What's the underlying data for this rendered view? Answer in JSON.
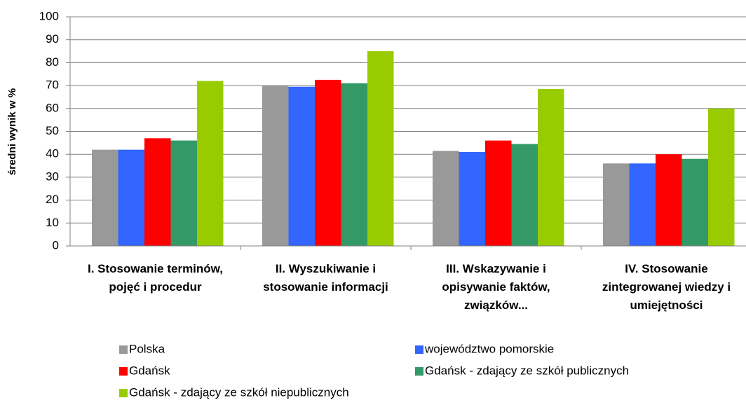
{
  "chart_data": {
    "type": "bar",
    "y_label": "średni wynik w %",
    "categories": [
      "I. Stosowanie terminów, pojęć i procedur",
      "II. Wyszukiwanie i stosowanie informacji",
      "III. Wskazywanie i opisywanie faktów, związków...",
      "IV. Stosowanie zintegrowanej wiedzy i umiejętności"
    ],
    "series": [
      {
        "name": "Polska",
        "color": "#999999",
        "values": [
          42,
          70,
          41.5,
          36
        ]
      },
      {
        "name": "województwo pomorskie",
        "color": "#3366ff",
        "values": [
          42,
          69.5,
          41,
          36
        ]
      },
      {
        "name": "Gdańsk",
        "color": "#ff0000",
        "values": [
          47,
          72.5,
          46,
          40
        ]
      },
      {
        "name": "Gdańsk - zdający ze szkół publicznych",
        "color": "#339966",
        "values": [
          46,
          71,
          44.5,
          38
        ]
      },
      {
        "name": "Gdańsk - zdający ze szkół niepublicznych",
        "color": "#99cc00",
        "values": [
          72,
          85,
          68.5,
          60
        ]
      }
    ],
    "ylim": [
      0,
      100
    ],
    "yticks": [
      0,
      10,
      20,
      30,
      40,
      50,
      60,
      70,
      80,
      90,
      100
    ],
    "grid": true,
    "legend": "bottom"
  }
}
